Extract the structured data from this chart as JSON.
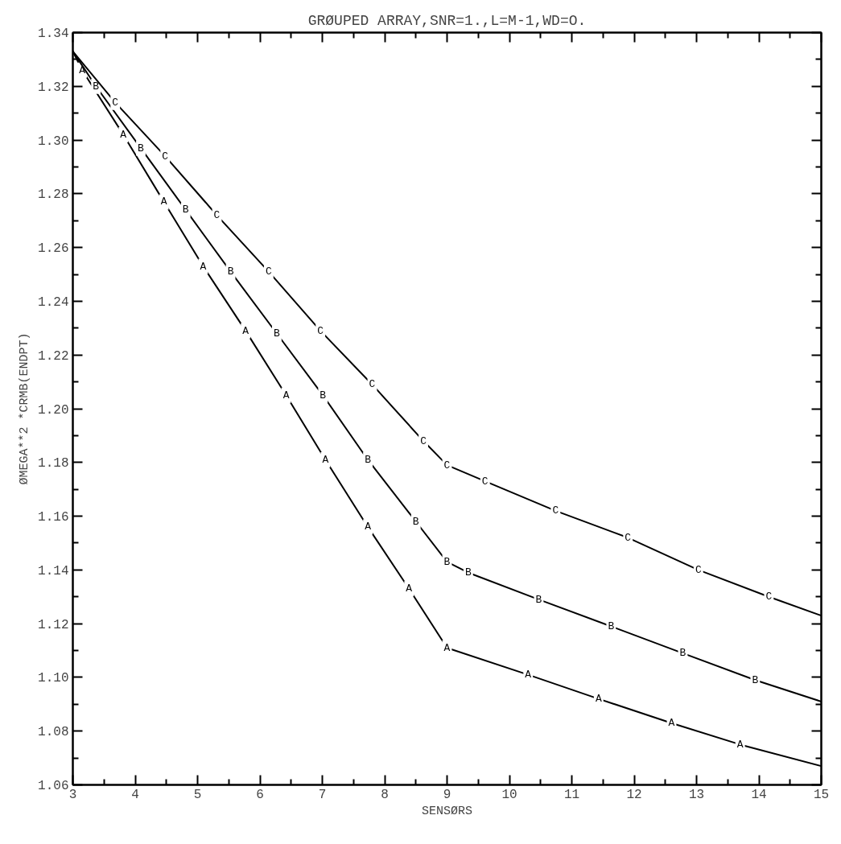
{
  "chart_data": {
    "type": "line",
    "title": "GRØUPED ARRAY,SNR=1.,L=M-1,WD=O.",
    "xlabel": "SENSØRS",
    "ylabel": "ØMEGA**2 *CRMB(ENDPT)",
    "xlim": [
      3,
      15
    ],
    "ylim": [
      1.06,
      1.34
    ],
    "xticks": [
      3,
      {
        "value": 3.5,
        "label": null
      },
      4,
      {
        "value": 4.5,
        "label": null
      },
      5,
      {
        "value": 5.5,
        "label": null
      },
      6,
      {
        "value": 6.5,
        "label": null
      },
      7,
      {
        "value": 7.5,
        "label": null
      },
      8,
      {
        "value": 8.5,
        "label": null
      },
      9,
      {
        "value": 9.5,
        "label": null
      },
      10,
      {
        "value": 10.5,
        "label": null
      },
      11,
      {
        "value": 11.5,
        "label": null
      },
      12,
      {
        "value": 12.5,
        "label": null
      },
      13,
      {
        "value": 13.5,
        "label": null
      },
      14,
      {
        "value": 14.5,
        "label": null
      },
      15
    ],
    "yticks": [
      {
        "value": 1.06,
        "label": "1.06"
      },
      {
        "value": 1.07,
        "label": null
      },
      {
        "value": 1.08,
        "label": "1.08"
      },
      {
        "value": 1.09,
        "label": null
      },
      {
        "value": 1.1,
        "label": "1.10"
      },
      {
        "value": 1.11,
        "label": null
      },
      {
        "value": 1.12,
        "label": "1.12"
      },
      {
        "value": 1.13,
        "label": null
      },
      {
        "value": 1.14,
        "label": "1.14"
      },
      {
        "value": 1.15,
        "label": null
      },
      {
        "value": 1.16,
        "label": "1.16"
      },
      {
        "value": 1.17,
        "label": null
      },
      {
        "value": 1.18,
        "label": "1.18"
      },
      {
        "value": 1.19,
        "label": null
      },
      {
        "value": 1.2,
        "label": "1.20"
      },
      {
        "value": 1.21,
        "label": null
      },
      {
        "value": 1.22,
        "label": "1.22"
      },
      {
        "value": 1.23,
        "label": null
      },
      {
        "value": 1.24,
        "label": "1.24"
      },
      {
        "value": 1.25,
        "label": null
      },
      {
        "value": 1.26,
        "label": "1.26"
      },
      {
        "value": 1.27,
        "label": null
      },
      {
        "value": 1.28,
        "label": "1.28"
      },
      {
        "value": 1.29,
        "label": null
      },
      {
        "value": 1.3,
        "label": "1.30"
      },
      {
        "value": 1.31,
        "label": null
      },
      {
        "value": 1.32,
        "label": "1.32"
      },
      {
        "value": 1.33,
        "label": null
      },
      {
        "value": 1.34,
        "label": "1.34"
      }
    ],
    "grid": false,
    "series": [
      {
        "name": "A",
        "color": "#000000",
        "marker": "square",
        "x": [
          3,
          3.15,
          3.81,
          4.46,
          5.09,
          5.77,
          6.42,
          7.05,
          7.73,
          8.39,
          9.0,
          10.3,
          11.43,
          12.6,
          13.7,
          15
        ],
        "values": [
          1.333,
          1.326,
          1.302,
          1.277,
          1.253,
          1.229,
          1.205,
          1.181,
          1.156,
          1.133,
          1.111,
          1.101,
          1.092,
          1.083,
          1.075,
          1.067
        ]
      },
      {
        "name": "B",
        "color": "#000000",
        "marker": "square",
        "x": [
          3,
          3.37,
          4.09,
          4.81,
          5.53,
          6.27,
          7.01,
          7.73,
          8.5,
          9.0,
          9.34,
          10.47,
          11.63,
          12.78,
          13.94,
          15
        ],
        "values": [
          1.333,
          1.32,
          1.297,
          1.274,
          1.251,
          1.228,
          1.205,
          1.181,
          1.158,
          1.143,
          1.139,
          1.129,
          1.119,
          1.109,
          1.099,
          1.091
        ]
      },
      {
        "name": "C",
        "color": "#000000",
        "marker": "square",
        "x": [
          3,
          3.68,
          4.48,
          5.31,
          6.14,
          6.97,
          7.8,
          8.62,
          9.0,
          9.61,
          10.74,
          11.9,
          13.03,
          14.16,
          15
        ],
        "values": [
          1.333,
          1.314,
          1.294,
          1.272,
          1.251,
          1.229,
          1.209,
          1.188,
          1.179,
          1.173,
          1.162,
          1.152,
          1.14,
          1.13,
          1.123
        ]
      }
    ]
  }
}
